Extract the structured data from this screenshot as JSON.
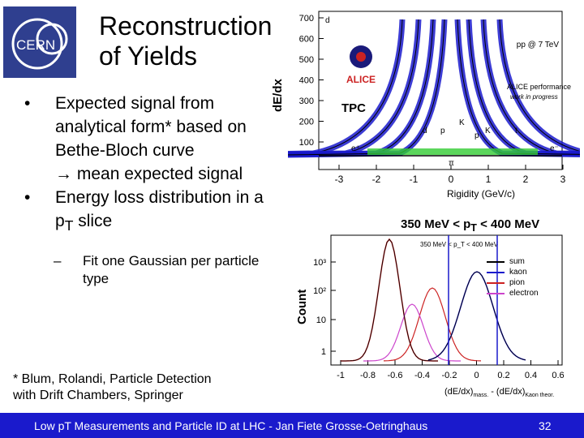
{
  "slide": {
    "title_line1": "Reconstruction",
    "title_line2": "of Yields",
    "bullet1": "Expected signal from analytical form* based on Bethe-Bloch curve",
    "bullet1_cont": "mean expected signal",
    "bullet2": "Energy loss distribution in a p",
    "bullet2_sub": "T",
    "bullet2_end": " slice",
    "subbullet": "Fit one Gaussian per particle type",
    "footnote_line1": "* Blum, Rolandi, Particle Detection",
    "footnote_line2": "with Drift Chambers, Springer",
    "footer_text": "Low pT Measurements and Particle ID at LHC - Jan Fiete Grosse-Oetringhaus",
    "page_number": "32",
    "logo_text": "CERN"
  },
  "top_plot": {
    "ylabel": "dE/dx",
    "xlabel": "Rigidity (GeV/c)",
    "tag": "TPC",
    "collision": "pp @ 7 TeV",
    "perf_line1": "ALICE performance",
    "perf_line2": "work in progress",
    "alice_logo": "ALICE",
    "yticks": [
      "700",
      "600",
      "500",
      "400",
      "300",
      "200",
      "100"
    ],
    "xticks": [
      "-3",
      "-2",
      "-1",
      "0",
      "1",
      "2",
      "3"
    ],
    "band_labels": [
      "d",
      "p",
      "K",
      "π",
      "e⁺",
      "e⁻",
      "t",
      "d",
      "p",
      "K"
    ],
    "colors": {
      "band": "#1a1acc",
      "inner": "#33cc33",
      "curve": "#000000"
    }
  },
  "bottom_plot": {
    "title": "350 MeV < p",
    "title_sub": "T",
    "title_end": " < 400 MeV",
    "inner_title": "350 MeV < p_T < 400 MeV",
    "ylabel": "Count",
    "yticks": [
      "10³",
      "10²",
      "10",
      "1"
    ],
    "xticks": [
      "-1",
      "-0.8",
      "-0.6",
      "-0.4",
      "-0.2",
      "0",
      "0.2",
      "0.4",
      "0.6"
    ],
    "xlabel": "(dE/dx)",
    "xlabel_sub1": "mass.",
    "xlabel_mid": " - (dE/dx)",
    "xlabel_sub2": "Kaon theor.",
    "legend": [
      {
        "name": "sum",
        "color": "#000000"
      },
      {
        "name": "kaon",
        "color": "#1a1acc"
      },
      {
        "name": "pion",
        "color": "#cc2222"
      },
      {
        "name": "electron",
        "color": "#cc44cc"
      }
    ]
  }
}
